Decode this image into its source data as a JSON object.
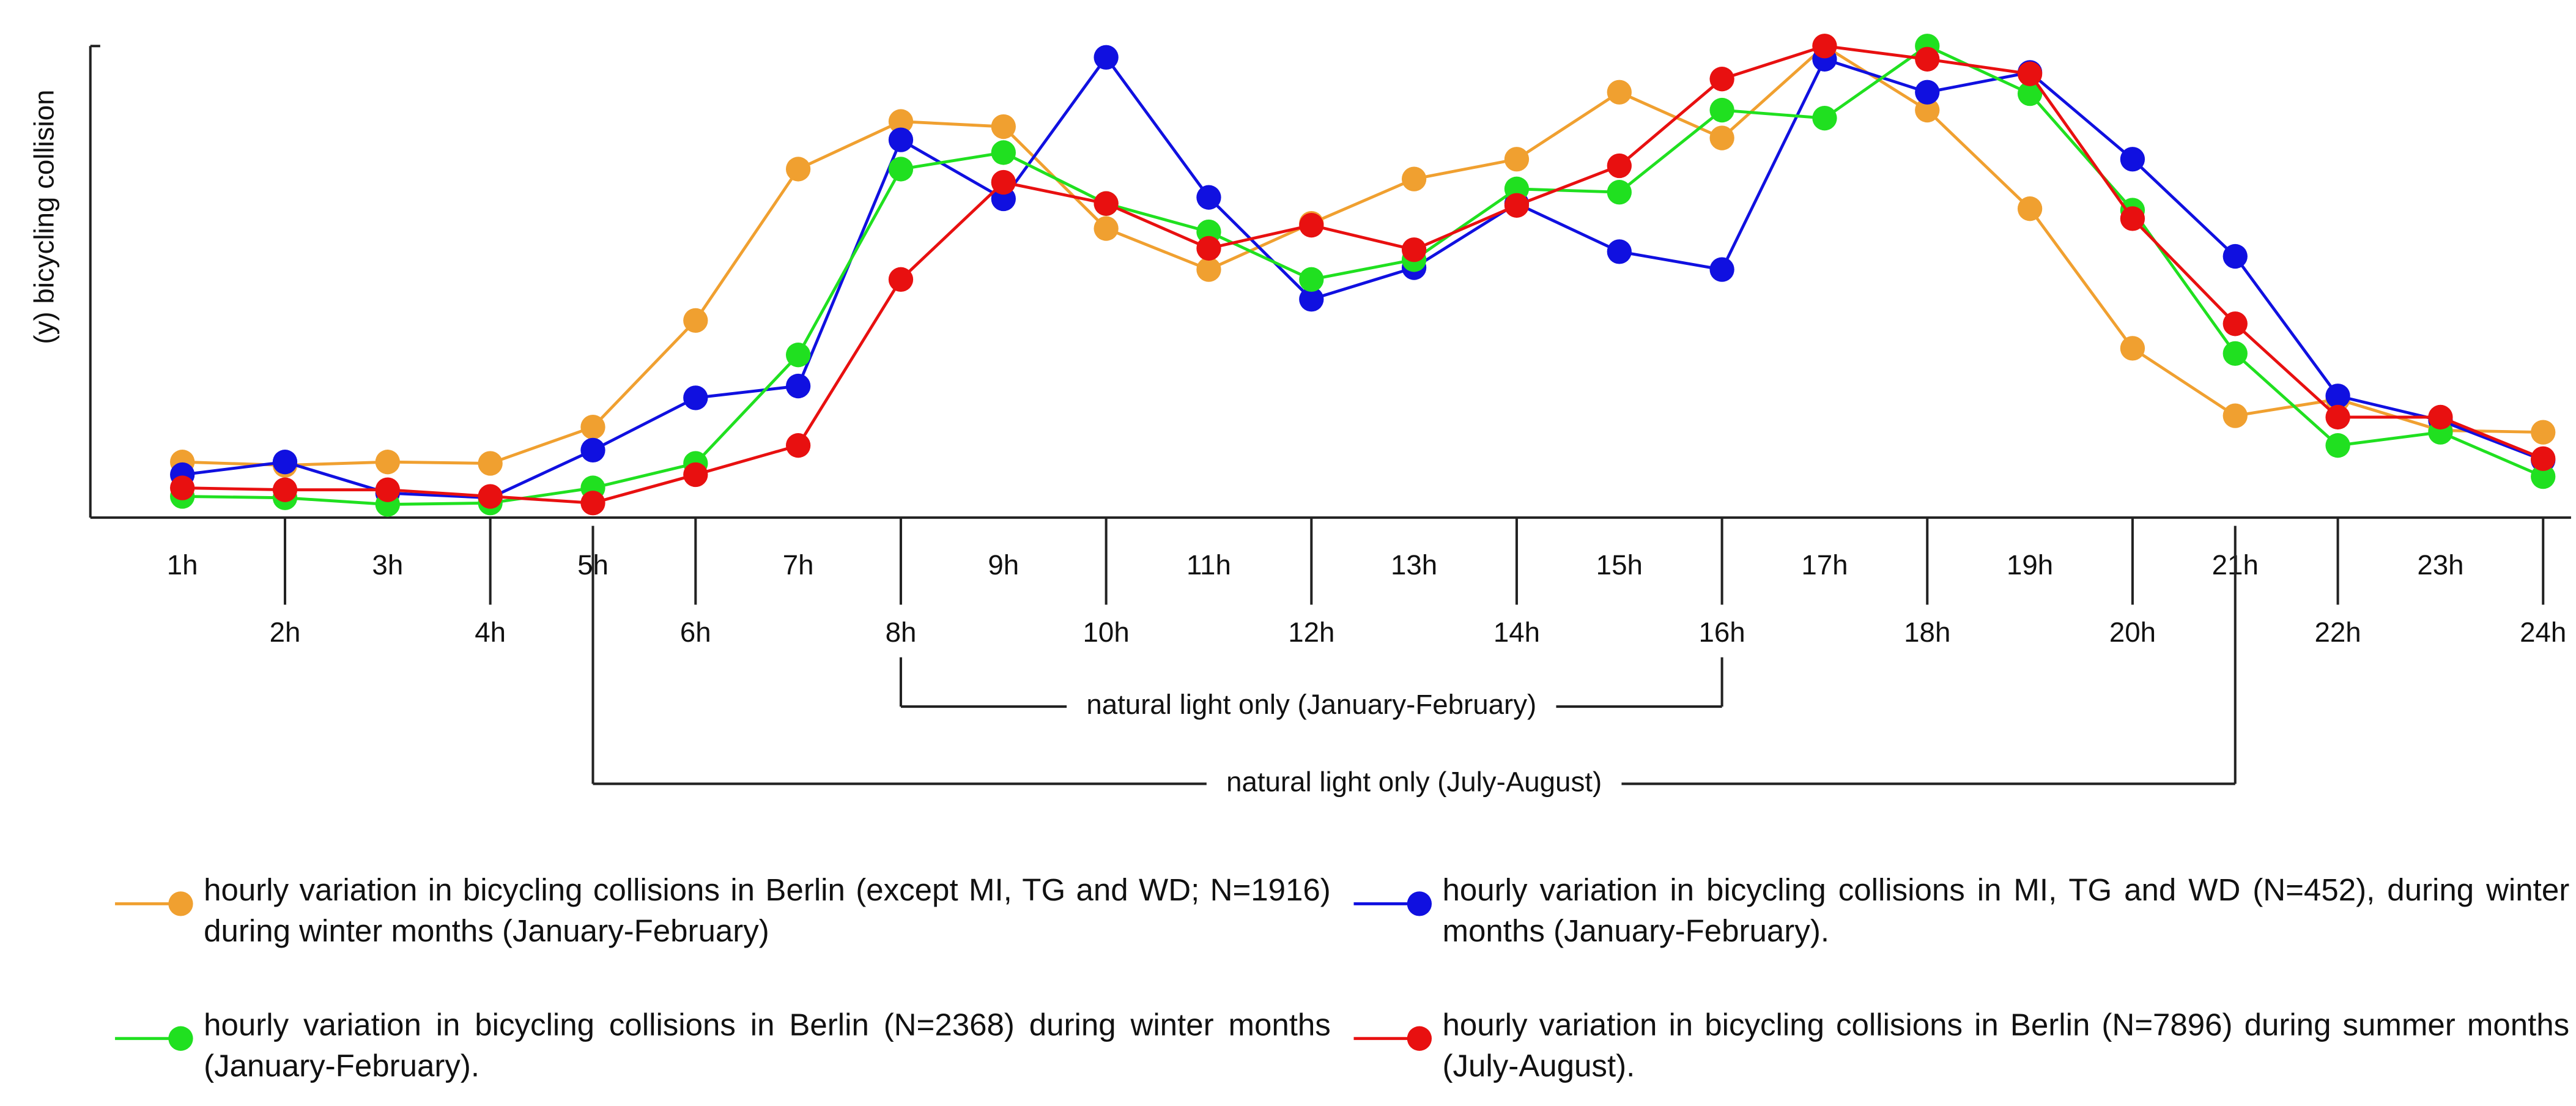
{
  "chart_data": {
    "type": "line",
    "y_label": "(y) bicycling collision",
    "categories": [
      "1h",
      "2h",
      "3h",
      "4h",
      "5h",
      "6h",
      "7h",
      "8h",
      "9h",
      "10h",
      "11h",
      "12h",
      "13h",
      "14h",
      "15h",
      "16h",
      "17h",
      "18h",
      "19h",
      "20h",
      "21h",
      "22h",
      "23h",
      "24h"
    ],
    "ylim": [
      0,
      100
    ],
    "annotations": [
      "natural light only (January-February)",
      "natural light only  (July-August)"
    ],
    "series": [
      {
        "name": "hourly variation in bicycling collisions in Berlin (except MI, TG and WD; N=1916) during winter months (January-February)",
        "color": "#f0a030",
        "values": [
          11.8,
          11.1,
          11.8,
          11.5,
          19.2,
          41.8,
          73.9,
          84.0,
          82.9,
          61.3,
          52.6,
          62.4,
          71.8,
          76.0,
          90.2,
          80.5,
          100,
          86.4,
          65.5,
          35.9,
          21.6,
          25.1,
          18.5,
          18.1
        ]
      },
      {
        "name": "hourly variation in bicycling collisions in MI, TG and WD (N=452), during winter months (January-February).",
        "color": "#1010e0",
        "values": [
          9.1,
          11.8,
          5.2,
          4.2,
          14.3,
          25.4,
          27.9,
          80.1,
          67.6,
          97.6,
          67.9,
          46.3,
          53.0,
          66.6,
          56.4,
          52.6,
          97.2,
          90.2,
          94.4,
          76.0,
          55.4,
          25.8,
          20.6,
          12.2
        ]
      },
      {
        "name": "hourly variation in bicycling collisions in Berlin (N=2368) during winter months (January-February).",
        "color": "#20e020",
        "values": [
          4.5,
          4.2,
          2.8,
          3.1,
          6.3,
          11.5,
          34.5,
          73.9,
          77.4,
          66.6,
          60.6,
          50.5,
          54.7,
          69.7,
          69.0,
          86.4,
          84.7,
          100,
          89.9,
          65.2,
          34.8,
          15.3,
          18.1,
          8.7
        ]
      },
      {
        "name": "hourly variation in bicycling collisions in Berlin (N=7896) during summer months (July-August).",
        "color": "#e81010",
        "values": [
          6.3,
          5.9,
          5.9,
          4.5,
          3.1,
          9.1,
          15.3,
          50.5,
          71.1,
          66.6,
          57.1,
          62.0,
          56.8,
          66.2,
          74.6,
          93.0,
          100,
          97.2,
          94.1,
          63.4,
          41.1,
          21.3,
          21.3,
          12.5
        ]
      }
    ]
  }
}
